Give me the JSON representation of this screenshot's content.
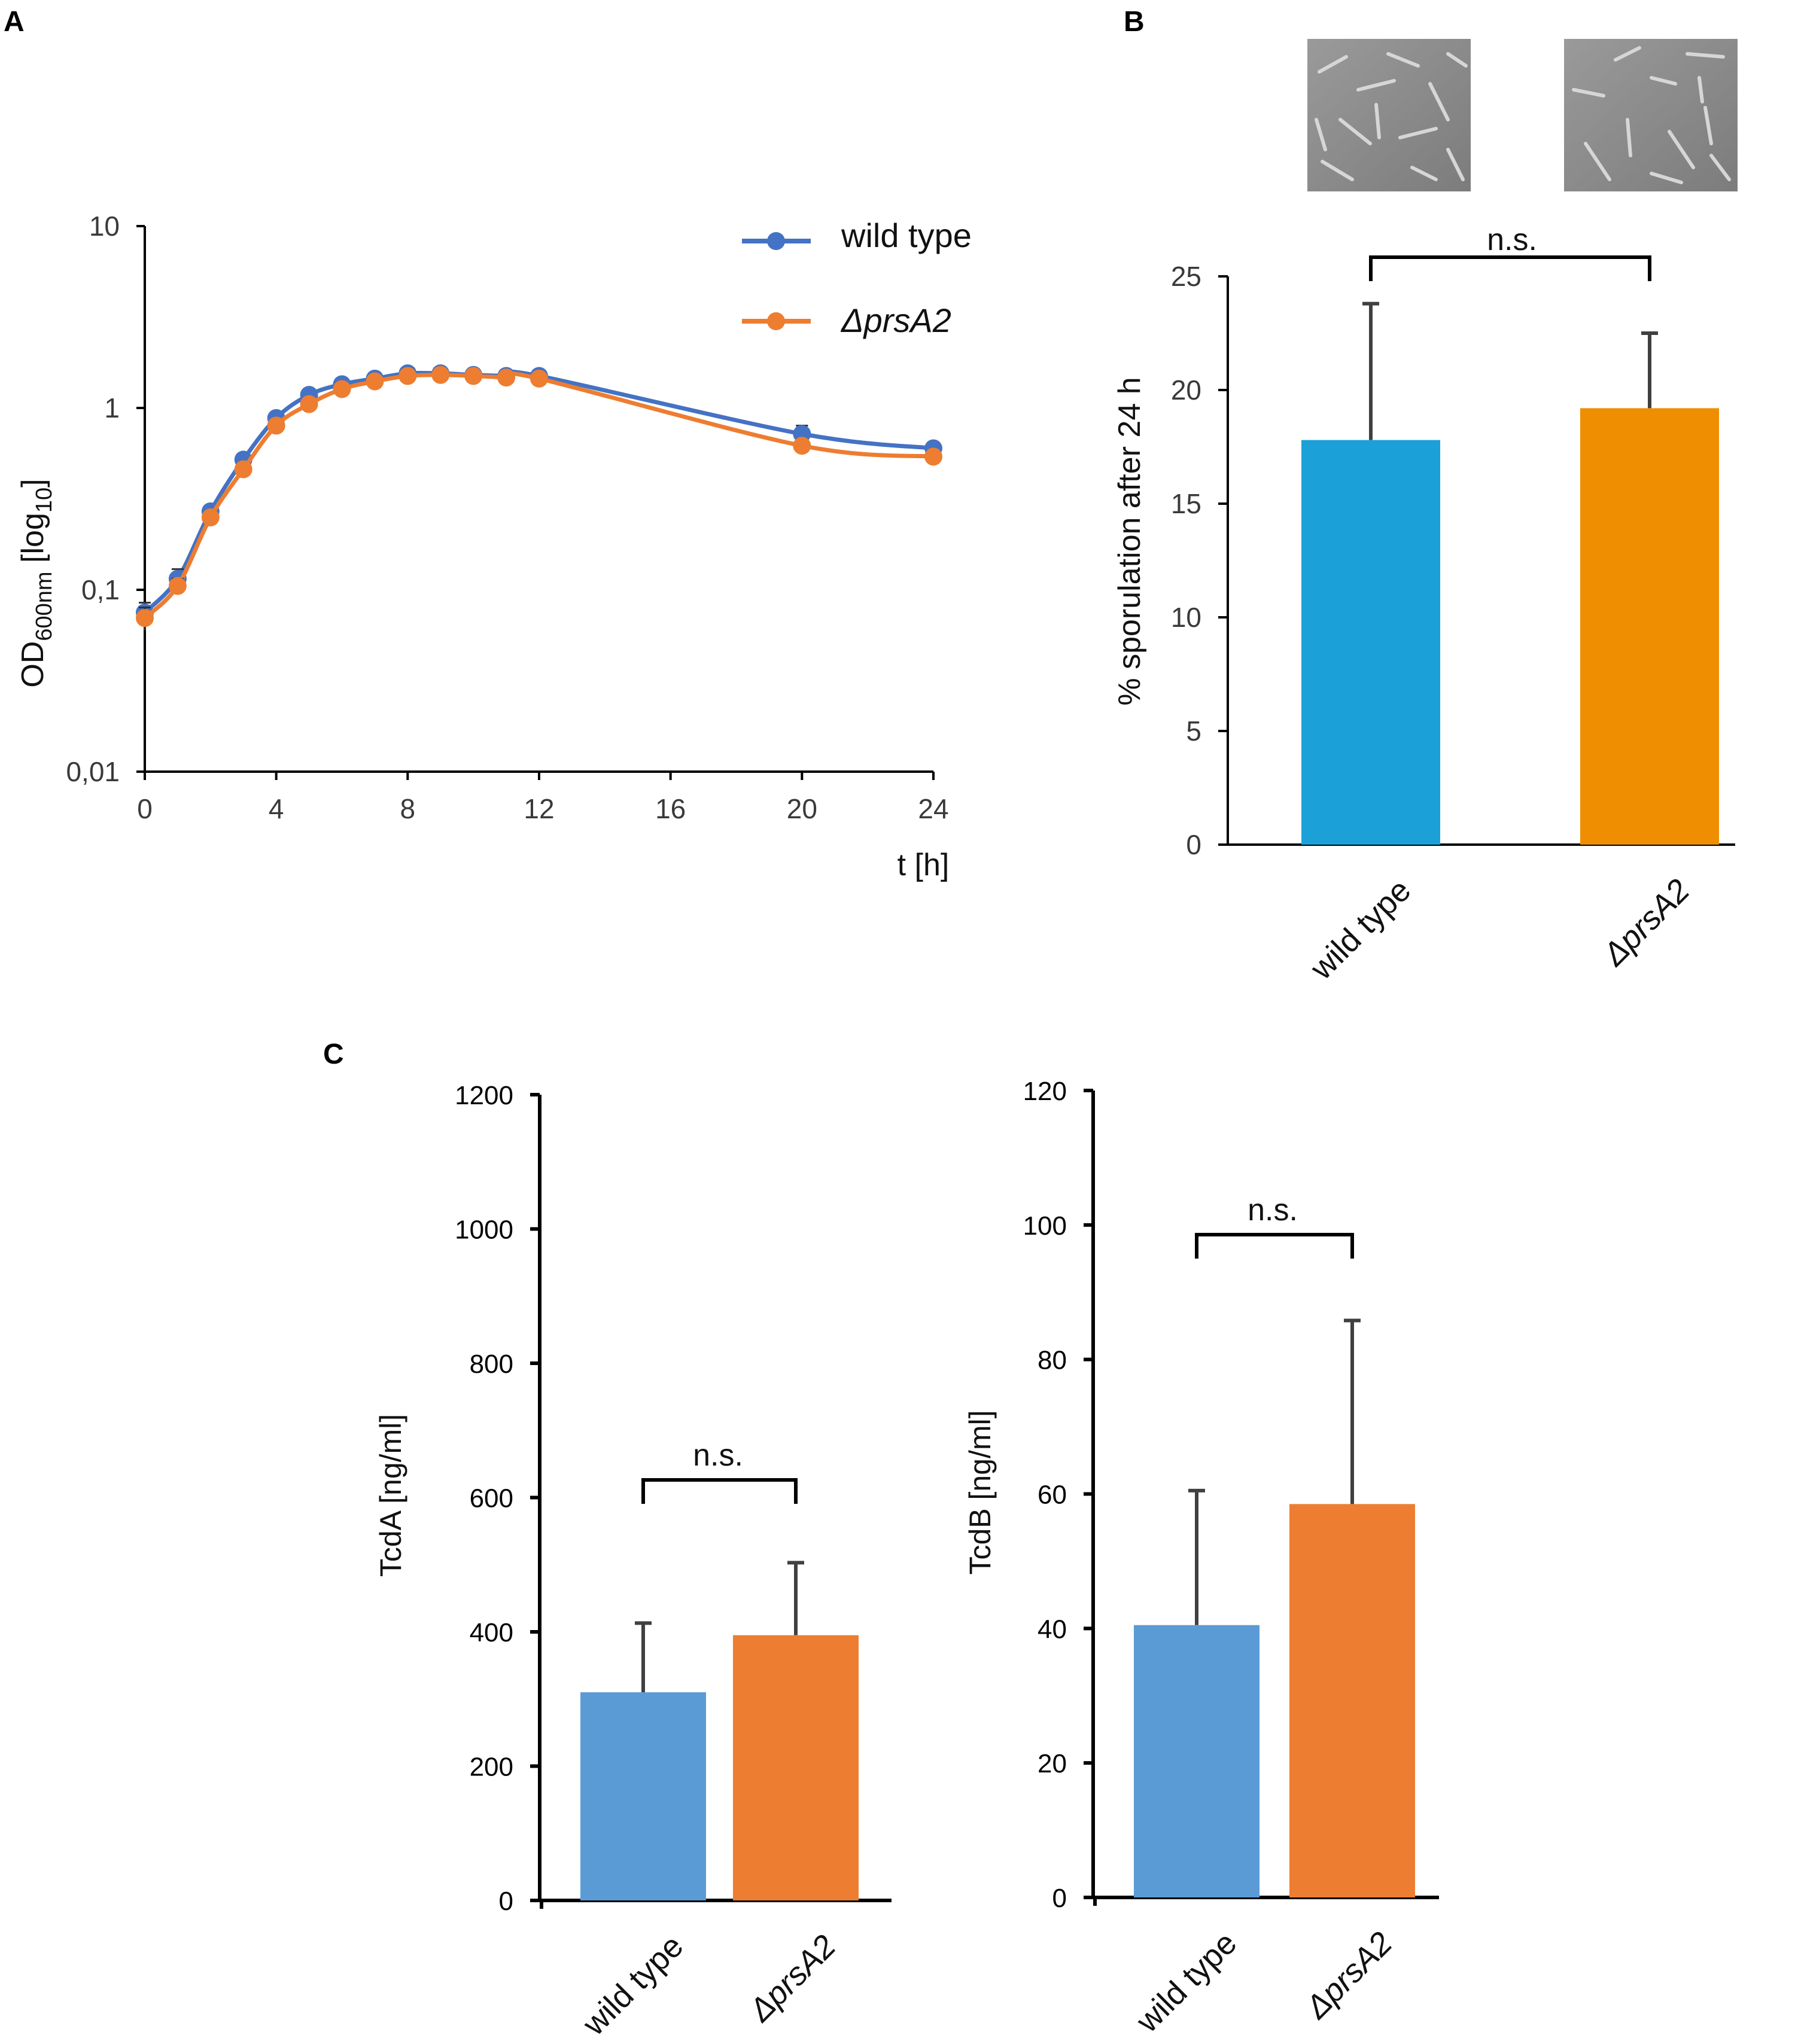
{
  "panels": {
    "a": "A",
    "b": "B",
    "c": "C"
  },
  "chart_data": [
    {
      "id": "A",
      "type": "line",
      "x": [
        0,
        1,
        2,
        3,
        4,
        5,
        6,
        7,
        8,
        9,
        10,
        11,
        12,
        20,
        24
      ],
      "series": [
        {
          "name": "wild type",
          "color": "#4472C4",
          "values": [
            0.075,
            0.115,
            0.27,
            0.52,
            0.88,
            1.18,
            1.35,
            1.45,
            1.55,
            1.55,
            1.52,
            1.5,
            1.5,
            0.72,
            0.6
          ],
          "errors": [
            0.01,
            0.015,
            0.02,
            0.03,
            0.04,
            0.05,
            0.05,
            0.05,
            0.05,
            0.05,
            0.05,
            0.05,
            0.05,
            0.08,
            0.03
          ]
        },
        {
          "name": "ΔprsA2",
          "color": "#ED7D31",
          "values": [
            0.07,
            0.105,
            0.25,
            0.46,
            0.8,
            1.05,
            1.27,
            1.4,
            1.5,
            1.52,
            1.5,
            1.47,
            1.45,
            0.62,
            0.54
          ],
          "errors": [
            0.01,
            0.01,
            0.02,
            0.03,
            0.04,
            0.05,
            0.05,
            0.05,
            0.05,
            0.05,
            0.05,
            0.05,
            0.05,
            0.05,
            0.03
          ]
        }
      ],
      "ylabel": "OD",
      "ylabel_sub": "600nm",
      "ylabel_suffix": " [log",
      "ylabel_log_sub": "10",
      "ylabel_end": "]",
      "xlabel": "t [h]",
      "yscale": "log",
      "ylim": [
        0.01,
        10
      ],
      "xlim": [
        0,
        24
      ],
      "yticks": [
        0.01,
        0.1,
        1,
        10
      ],
      "ytick_labels": [
        "0,01",
        "0,1",
        "1",
        "10"
      ],
      "xticks": [
        0,
        4,
        8,
        12,
        16,
        20,
        24
      ],
      "xtick_labels": [
        "0",
        "4",
        "8",
        "12",
        "16",
        "20",
        "24"
      ],
      "legend": "top-right"
    },
    {
      "id": "B",
      "type": "bar",
      "categories": [
        "wild type",
        "ΔprsA2"
      ],
      "values": [
        17.8,
        19.2
      ],
      "errors": [
        6.0,
        3.3
      ],
      "colors": [
        "#1BA1D8",
        "#EE8E00"
      ],
      "ylabel": "% sporulation after 24 h",
      "ylim": [
        0,
        25
      ],
      "yticks": [
        0,
        5,
        10,
        15,
        20,
        25
      ],
      "annotation": "n.s."
    },
    {
      "id": "C-left",
      "type": "bar",
      "categories": [
        "wild type",
        "ΔprsA2"
      ],
      "values": [
        310,
        395
      ],
      "errors": [
        103,
        108
      ],
      "colors": [
        "#5B9BD5",
        "#ED7D31"
      ],
      "ylabel": "TcdA [ng/ml]",
      "ylim": [
        0,
        1200
      ],
      "yticks": [
        0,
        200,
        400,
        600,
        800,
        1000,
        1200
      ],
      "annotation": "n.s."
    },
    {
      "id": "C-right",
      "type": "bar",
      "categories": [
        "wild type",
        "ΔprsA2"
      ],
      "values": [
        40.5,
        58.5
      ],
      "errors": [
        20,
        27.3
      ],
      "colors": [
        "#5B9BD5",
        "#ED7D31"
      ],
      "ylabel": "TcdB [ng/ml]",
      "ylim": [
        0,
        120
      ],
      "yticks": [
        0,
        20,
        40,
        60,
        80,
        100,
        120
      ],
      "annotation": "n.s."
    }
  ],
  "micrograph_icon": "bacterial-cell-micrograph-icon"
}
